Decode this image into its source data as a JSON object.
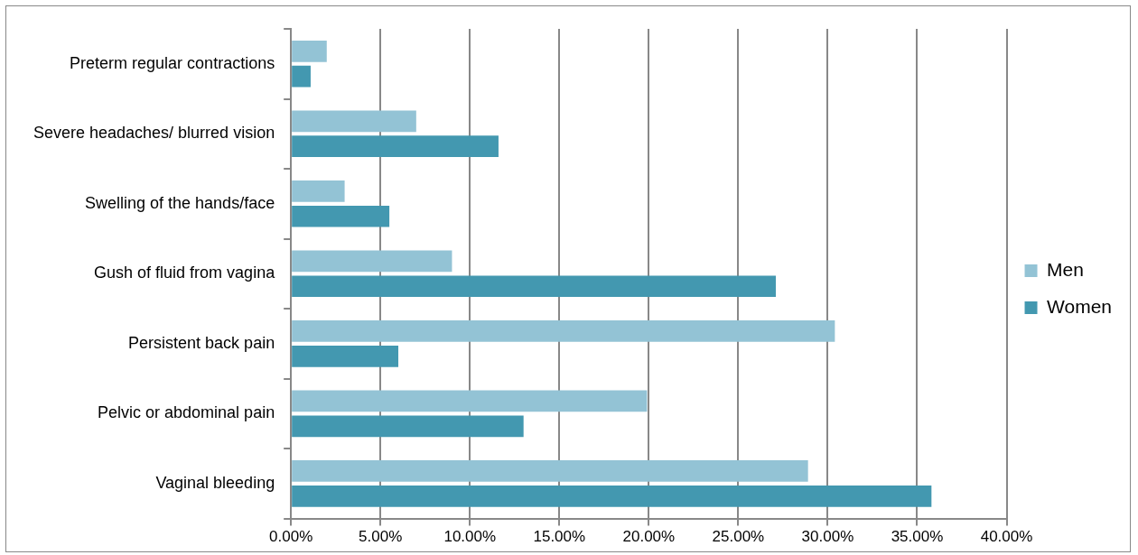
{
  "chart_data": {
    "type": "bar",
    "orientation": "horizontal",
    "categories": [
      "Preterm regular contractions",
      "Severe headaches/ blurred vision",
      "Swelling of the hands/face",
      "Gush of fluid from vagina",
      "Persistent back pain",
      "Pelvic or abdominal pain",
      "Vaginal bleeding"
    ],
    "series": [
      {
        "name": "Men",
        "color": "#93c3d5",
        "values": [
          2.0,
          7.0,
          3.0,
          9.0,
          30.4,
          19.9,
          28.9
        ]
      },
      {
        "name": "Women",
        "color": "#4398b0",
        "values": [
          1.1,
          11.6,
          5.5,
          27.1,
          6.0,
          13.0,
          35.8
        ]
      }
    ],
    "xlim": [
      0,
      40
    ],
    "xticks": [
      {
        "value": 0,
        "label": "0.00%"
      },
      {
        "value": 5,
        "label": "5.00%"
      },
      {
        "value": 10,
        "label": "10.00%"
      },
      {
        "value": 15,
        "label": "15.00%"
      },
      {
        "value": 20,
        "label": "20.00%"
      },
      {
        "value": 25,
        "label": "25.00%"
      },
      {
        "value": 30,
        "label": "30.00%"
      },
      {
        "value": 35,
        "label": "35.00%"
      },
      {
        "value": 40,
        "label": "40.00%"
      }
    ],
    "grid": "x",
    "legend": "right"
  }
}
